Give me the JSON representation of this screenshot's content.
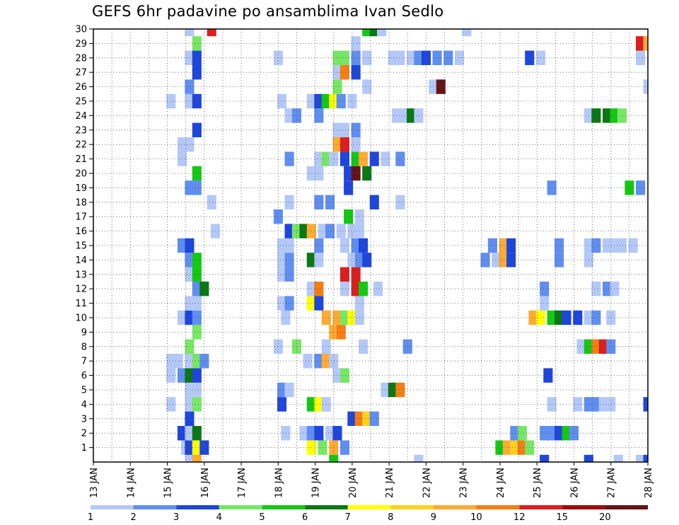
{
  "chart_data": {
    "type": "heatmap",
    "title": "GEFS 6hr padavine po ansamblima Ivan Sedlo",
    "xlabel": "",
    "ylabel": "",
    "x_tick_labels": [
      "13 JAN",
      "14 JAN",
      "15 JAN",
      "16 JAN",
      "17 JAN",
      "18 JAN",
      "19 JAN",
      "20 JAN",
      "21 JAN",
      "22 JAN",
      "23 JAN",
      "24 JAN",
      "25 JAN",
      "26 JAN",
      "27 JAN",
      "28 JAN"
    ],
    "x_range_days": [
      13,
      28
    ],
    "y_tick_labels": [
      "1",
      "2",
      "3",
      "4",
      "5",
      "6",
      "7",
      "8",
      "9",
      "10",
      "11",
      "12",
      "13",
      "14",
      "15",
      "16",
      "17",
      "18",
      "19",
      "20",
      "21",
      "22",
      "23",
      "24",
      "25",
      "26",
      "27",
      "28",
      "29",
      "30"
    ],
    "y_range": [
      0,
      30
    ],
    "grid": true,
    "legend": {
      "placement": "bottom",
      "labels": [
        "1",
        "2",
        "3",
        "4",
        "5",
        "6",
        "7",
        "8",
        "9",
        "10",
        "12",
        "15",
        "20"
      ],
      "colors": [
        "#b4c8f8",
        "#5f8ef0",
        "#1e46dc",
        "#78e664",
        "#14c814",
        "#0a7814",
        "#ffff00",
        "#ffd11e",
        "#ffaa32",
        "#f57d14",
        "#dc1e1e",
        "#a00a0a",
        "#641414"
      ]
    },
    "cells": [
      [
        15.6,
        0,
        0
      ],
      [
        15.8,
        0,
        8
      ],
      [
        19.5,
        0,
        4
      ],
      [
        21.8,
        0,
        0
      ],
      [
        25.2,
        0,
        2
      ],
      [
        26.4,
        0,
        2
      ],
      [
        27.2,
        0,
        0
      ],
      [
        27.8,
        0,
        0
      ],
      [
        28.0,
        0,
        2
      ],
      [
        15.5,
        1,
        0
      ],
      [
        15.6,
        1,
        2
      ],
      [
        15.8,
        1,
        6
      ],
      [
        16.0,
        1,
        2
      ],
      [
        18.9,
        1,
        6
      ],
      [
        19.2,
        1,
        3
      ],
      [
        19.5,
        1,
        8
      ],
      [
        19.8,
        1,
        1
      ],
      [
        24.0,
        1,
        4
      ],
      [
        24.2,
        1,
        8
      ],
      [
        24.4,
        1,
        7
      ],
      [
        24.6,
        1,
        9
      ],
      [
        24.8,
        1,
        3
      ],
      [
        15.4,
        2,
        2
      ],
      [
        15.6,
        2,
        0
      ],
      [
        15.8,
        2,
        5
      ],
      [
        18.2,
        2,
        0
      ],
      [
        18.7,
        2,
        0
      ],
      [
        18.9,
        2,
        1
      ],
      [
        19.1,
        2,
        2
      ],
      [
        19.4,
        2,
        0
      ],
      [
        19.6,
        2,
        2
      ],
      [
        24.4,
        2,
        1
      ],
      [
        24.6,
        2,
        3
      ],
      [
        25.2,
        2,
        1
      ],
      [
        25.4,
        2,
        1
      ],
      [
        25.6,
        2,
        2
      ],
      [
        25.8,
        2,
        4
      ],
      [
        26.0,
        2,
        1
      ],
      [
        15.6,
        3,
        2
      ],
      [
        20.0,
        3,
        2
      ],
      [
        20.2,
        3,
        9
      ],
      [
        20.4,
        3,
        7
      ],
      [
        20.6,
        3,
        1
      ],
      [
        15.1,
        4,
        0
      ],
      [
        15.6,
        4,
        0
      ],
      [
        15.8,
        4,
        3
      ],
      [
        18.1,
        4,
        2
      ],
      [
        18.9,
        4,
        4
      ],
      [
        19.1,
        4,
        6
      ],
      [
        19.3,
        4,
        0
      ],
      [
        25.4,
        4,
        0
      ],
      [
        26.1,
        4,
        0
      ],
      [
        26.4,
        4,
        1
      ],
      [
        26.6,
        4,
        1
      ],
      [
        26.8,
        4,
        0
      ],
      [
        27.0,
        4,
        0
      ],
      [
        28.0,
        4,
        2
      ],
      [
        15.6,
        5,
        0
      ],
      [
        15.8,
        5,
        0
      ],
      [
        18.1,
        5,
        1
      ],
      [
        18.3,
        5,
        0
      ],
      [
        20.9,
        5,
        0
      ],
      [
        21.1,
        5,
        5
      ],
      [
        21.3,
        5,
        9
      ],
      [
        15.1,
        6,
        0
      ],
      [
        15.4,
        6,
        1
      ],
      [
        15.6,
        6,
        5
      ],
      [
        15.8,
        6,
        2
      ],
      [
        19.6,
        6,
        0
      ],
      [
        19.8,
        6,
        3
      ],
      [
        25.3,
        6,
        2
      ],
      [
        15.1,
        7,
        0
      ],
      [
        15.3,
        7,
        0
      ],
      [
        15.6,
        7,
        0
      ],
      [
        15.8,
        7,
        3
      ],
      [
        16.0,
        7,
        1
      ],
      [
        18.8,
        7,
        0
      ],
      [
        19.1,
        7,
        1
      ],
      [
        19.3,
        7,
        8
      ],
      [
        19.5,
        7,
        0
      ],
      [
        15.6,
        8,
        3
      ],
      [
        18.0,
        8,
        0
      ],
      [
        18.5,
        8,
        3
      ],
      [
        19.3,
        8,
        0
      ],
      [
        20.3,
        8,
        0
      ],
      [
        21.5,
        8,
        1
      ],
      [
        26.2,
        8,
        0
      ],
      [
        26.4,
        8,
        4
      ],
      [
        26.6,
        8,
        9
      ],
      [
        26.8,
        8,
        10
      ],
      [
        27.0,
        8,
        1
      ],
      [
        15.8,
        9,
        3
      ],
      [
        19.5,
        9,
        8
      ],
      [
        19.7,
        9,
        9
      ],
      [
        15.4,
        10,
        0
      ],
      [
        15.6,
        10,
        2
      ],
      [
        15.8,
        10,
        1
      ],
      [
        18.2,
        10,
        0
      ],
      [
        19.3,
        10,
        8
      ],
      [
        19.6,
        10,
        8
      ],
      [
        19.8,
        10,
        3
      ],
      [
        20.0,
        10,
        6
      ],
      [
        20.2,
        10,
        0
      ],
      [
        24.9,
        10,
        8
      ],
      [
        25.1,
        10,
        6
      ],
      [
        25.4,
        10,
        4
      ],
      [
        25.6,
        10,
        5
      ],
      [
        25.8,
        10,
        2
      ],
      [
        26.1,
        10,
        2
      ],
      [
        26.4,
        10,
        0
      ],
      [
        26.6,
        10,
        1
      ],
      [
        27.0,
        10,
        0
      ],
      [
        15.6,
        11,
        0
      ],
      [
        15.8,
        11,
        0
      ],
      [
        18.1,
        11,
        0
      ],
      [
        18.3,
        11,
        1
      ],
      [
        18.9,
        11,
        6
      ],
      [
        19.1,
        11,
        2
      ],
      [
        20.2,
        11,
        0
      ],
      [
        25.2,
        11,
        0
      ],
      [
        15.8,
        12,
        1
      ],
      [
        16.0,
        12,
        5
      ],
      [
        18.9,
        12,
        0
      ],
      [
        19.1,
        12,
        9
      ],
      [
        19.8,
        12,
        0
      ],
      [
        20.1,
        12,
        10
      ],
      [
        20.3,
        12,
        4
      ],
      [
        20.7,
        12,
        0
      ],
      [
        25.2,
        12,
        1
      ],
      [
        26.6,
        12,
        0
      ],
      [
        26.9,
        12,
        1
      ],
      [
        27.1,
        12,
        0
      ],
      [
        15.6,
        13,
        0
      ],
      [
        15.8,
        13,
        4
      ],
      [
        18.1,
        13,
        0
      ],
      [
        18.3,
        13,
        1
      ],
      [
        19.8,
        13,
        10
      ],
      [
        20.1,
        13,
        10
      ],
      [
        15.6,
        14,
        1
      ],
      [
        15.8,
        14,
        4
      ],
      [
        18.1,
        14,
        0
      ],
      [
        18.3,
        14,
        1
      ],
      [
        18.9,
        14,
        5
      ],
      [
        19.1,
        14,
        0
      ],
      [
        20.0,
        14,
        0
      ],
      [
        20.2,
        14,
        1
      ],
      [
        20.4,
        14,
        2
      ],
      [
        23.6,
        14,
        1
      ],
      [
        23.9,
        14,
        0
      ],
      [
        24.1,
        14,
        8
      ],
      [
        24.3,
        14,
        2
      ],
      [
        25.6,
        14,
        1
      ],
      [
        26.4,
        14,
        0
      ],
      [
        15.4,
        15,
        1
      ],
      [
        15.6,
        15,
        2
      ],
      [
        18.1,
        15,
        0
      ],
      [
        18.3,
        15,
        0
      ],
      [
        19.1,
        15,
        1
      ],
      [
        19.8,
        15,
        0
      ],
      [
        20.1,
        15,
        1
      ],
      [
        20.3,
        15,
        2
      ],
      [
        23.8,
        15,
        1
      ],
      [
        24.1,
        15,
        8
      ],
      [
        24.3,
        15,
        2
      ],
      [
        25.6,
        15,
        1
      ],
      [
        26.4,
        15,
        0
      ],
      [
        26.6,
        15,
        1
      ],
      [
        26.9,
        15,
        0
      ],
      [
        27.1,
        15,
        0
      ],
      [
        27.3,
        15,
        0
      ],
      [
        27.6,
        15,
        0
      ],
      [
        16.3,
        16,
        0
      ],
      [
        18.3,
        16,
        2
      ],
      [
        18.5,
        16,
        3
      ],
      [
        18.7,
        16,
        5
      ],
      [
        18.9,
        16,
        8
      ],
      [
        19.2,
        16,
        0
      ],
      [
        19.4,
        16,
        1
      ],
      [
        19.7,
        16,
        0
      ],
      [
        20.0,
        16,
        0
      ],
      [
        20.2,
        16,
        0
      ],
      [
        18.0,
        17,
        1
      ],
      [
        19.9,
        17,
        4
      ],
      [
        20.2,
        17,
        0
      ],
      [
        16.2,
        18,
        0
      ],
      [
        18.3,
        18,
        0
      ],
      [
        19.1,
        18,
        1
      ],
      [
        19.4,
        18,
        1
      ],
      [
        20.6,
        18,
        2
      ],
      [
        21.3,
        18,
        0
      ],
      [
        15.6,
        19,
        1
      ],
      [
        15.8,
        19,
        1
      ],
      [
        19.9,
        19,
        2
      ],
      [
        25.4,
        19,
        1
      ],
      [
        27.5,
        19,
        4
      ],
      [
        27.8,
        19,
        1
      ],
      [
        15.8,
        20,
        4
      ],
      [
        18.9,
        20,
        0
      ],
      [
        19.1,
        20,
        0
      ],
      [
        19.9,
        20,
        2
      ],
      [
        20.1,
        20,
        12
      ],
      [
        20.4,
        20,
        5
      ],
      [
        15.4,
        21,
        0
      ],
      [
        18.3,
        21,
        1
      ],
      [
        19.1,
        21,
        0
      ],
      [
        19.3,
        21,
        3
      ],
      [
        19.5,
        21,
        0
      ],
      [
        19.8,
        21,
        2
      ],
      [
        20.1,
        21,
        4
      ],
      [
        20.3,
        21,
        8
      ],
      [
        20.6,
        21,
        2
      ],
      [
        20.9,
        21,
        0
      ],
      [
        21.3,
        21,
        1
      ],
      [
        15.4,
        22,
        0
      ],
      [
        15.6,
        22,
        0
      ],
      [
        19.6,
        22,
        8
      ],
      [
        19.8,
        22,
        10
      ],
      [
        20.1,
        22,
        0
      ],
      [
        15.8,
        23,
        2
      ],
      [
        19.6,
        23,
        0
      ],
      [
        19.8,
        23,
        0
      ],
      [
        20.1,
        23,
        1
      ],
      [
        18.3,
        24,
        0
      ],
      [
        18.5,
        24,
        1
      ],
      [
        19.1,
        24,
        1
      ],
      [
        21.2,
        24,
        0
      ],
      [
        21.4,
        24,
        0
      ],
      [
        21.6,
        24,
        5
      ],
      [
        21.8,
        24,
        0
      ],
      [
        26.4,
        24,
        0
      ],
      [
        26.6,
        24,
        5
      ],
      [
        26.9,
        24,
        5
      ],
      [
        27.1,
        24,
        4
      ],
      [
        27.3,
        24,
        3
      ],
      [
        15.1,
        25,
        0
      ],
      [
        15.6,
        25,
        0
      ],
      [
        15.8,
        25,
        2
      ],
      [
        18.1,
        25,
        0
      ],
      [
        18.9,
        25,
        0
      ],
      [
        19.1,
        25,
        2
      ],
      [
        19.3,
        25,
        4
      ],
      [
        19.5,
        25,
        6
      ],
      [
        19.7,
        25,
        1
      ],
      [
        20.0,
        25,
        0
      ],
      [
        15.6,
        26,
        1
      ],
      [
        19.6,
        26,
        3
      ],
      [
        20.4,
        26,
        0
      ],
      [
        22.2,
        26,
        0
      ],
      [
        22.4,
        26,
        12
      ],
      [
        28.0,
        26,
        0
      ],
      [
        15.8,
        27,
        2
      ],
      [
        19.6,
        27,
        0
      ],
      [
        19.8,
        27,
        9
      ],
      [
        20.1,
        27,
        2
      ],
      [
        15.6,
        28,
        0
      ],
      [
        15.8,
        28,
        2
      ],
      [
        18.0,
        28,
        0
      ],
      [
        19.6,
        28,
        3
      ],
      [
        19.8,
        28,
        3
      ],
      [
        20.1,
        28,
        1
      ],
      [
        20.4,
        28,
        0
      ],
      [
        21.1,
        28,
        0
      ],
      [
        21.3,
        28,
        0
      ],
      [
        21.6,
        28,
        0
      ],
      [
        21.8,
        28,
        1
      ],
      [
        22.0,
        28,
        2
      ],
      [
        22.3,
        28,
        1
      ],
      [
        22.6,
        28,
        1
      ],
      [
        22.9,
        28,
        0
      ],
      [
        24.8,
        28,
        2
      ],
      [
        25.1,
        28,
        0
      ],
      [
        27.8,
        28,
        0
      ],
      [
        15.8,
        29,
        3
      ],
      [
        20.1,
        29,
        0
      ],
      [
        27.8,
        29,
        10
      ],
      [
        28.0,
        29,
        8
      ],
      [
        15.6,
        30,
        0
      ],
      [
        16.2,
        30,
        10
      ],
      [
        20.4,
        30,
        4
      ],
      [
        20.6,
        30,
        5
      ],
      [
        20.8,
        30,
        0
      ],
      [
        23.1,
        30,
        0
      ]
    ]
  }
}
